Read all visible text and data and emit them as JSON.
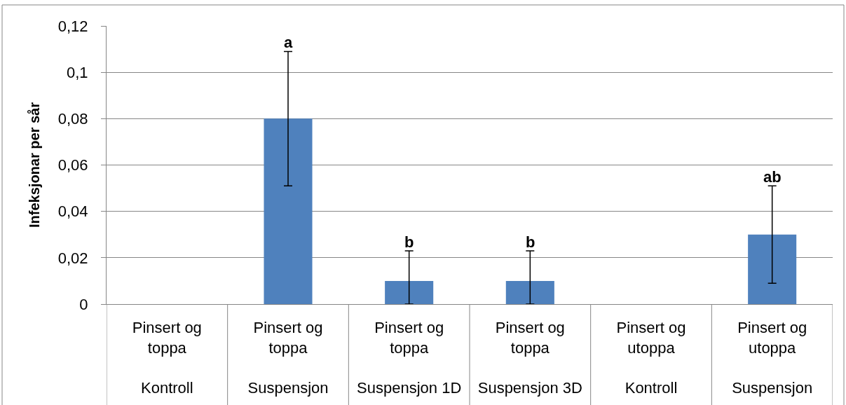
{
  "chart_data": {
    "type": "bar",
    "ylabel": "Infeksjonar per sår",
    "categories": [
      "Pinsert og toppa\nKontroll",
      "Pinsert og toppa\nSuspensjon",
      "Pinsert og toppa\nSuspensjon 1D",
      "Pinsert og toppa\nSuspensjon 3D",
      "Pinsert og utoppa\nKontroll",
      "Pinsert og utoppa\nSuspensjon"
    ],
    "values": [
      0,
      0.08,
      0.01,
      0.01,
      0,
      0.03
    ],
    "color": "#4f81bd",
    "errors": [
      null,
      [
        0.051,
        0.109
      ],
      [
        0,
        0.023
      ],
      [
        0,
        0.023
      ],
      null,
      [
        0.009,
        0.051
      ]
    ],
    "annotations": [
      {
        "text": "a",
        "x": "Pinsert og toppa\nSuspensjon",
        "y": 0.109
      },
      {
        "text": "b",
        "x": "Pinsert og toppa\nSuspensjon 1D",
        "y": 0.023
      },
      {
        "text": "b",
        "x": "Pinsert og toppa\nSuspensjon 3D",
        "y": 0.023
      },
      {
        "text": "ab",
        "x": "Pinsert og utoppa\nSuspensjon",
        "y": 0.051
      }
    ],
    "ylim": [
      0,
      0.12
    ],
    "yticks": [
      0,
      {
        "value": 0.02,
        "label": "0,02"
      },
      {
        "value": 0.04,
        "label": "0,04"
      },
      {
        "value": 0.06,
        "label": "0,06"
      },
      {
        "value": 0.08,
        "label": "0,08"
      },
      {
        "value": 0.1,
        "label": "0,1"
      },
      {
        "value": 0.12,
        "label": "0,12"
      }
    ],
    "grid": "y"
  }
}
